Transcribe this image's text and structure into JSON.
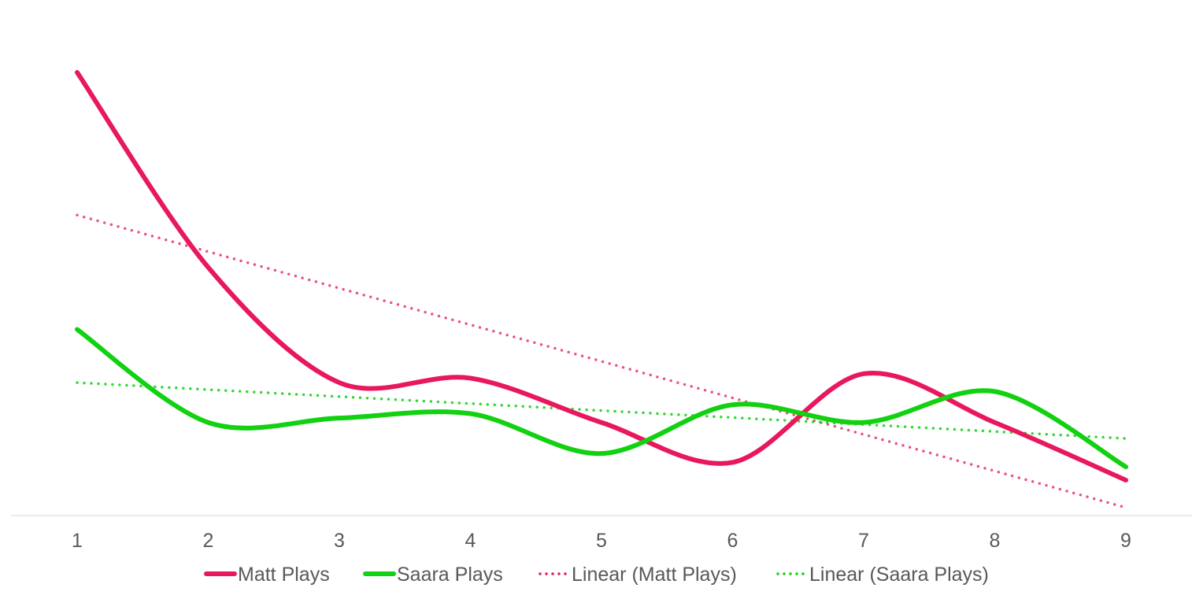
{
  "chart_data": {
    "type": "line",
    "title": "",
    "xlabel": "",
    "ylabel": "",
    "x": [
      1,
      2,
      3,
      4,
      5,
      6,
      7,
      8,
      9
    ],
    "ylim": [
      0,
      100
    ],
    "grid": false,
    "smooth": true,
    "legend_position": "bottom",
    "series": [
      {
        "name": "Matt Plays",
        "color": "#e8185c",
        "style": "solid",
        "values": [
          100,
          56,
          30,
          31,
          21,
          12,
          32,
          21,
          8
        ]
      },
      {
        "name": "Saara Plays",
        "color": "#11d111",
        "style": "solid",
        "values": [
          42,
          21,
          22,
          23,
          14,
          25,
          21,
          28,
          11
        ]
      },
      {
        "name": "Linear (Matt Plays)",
        "color": "#e8185c",
        "style": "dotted",
        "trend_of": "Matt Plays",
        "values": [
          67.8,
          59.55,
          51.31,
          43.06,
          34.81,
          26.56,
          18.31,
          10.06,
          1.81
        ]
      },
      {
        "name": "Linear (Saara Plays)",
        "color": "#11d111",
        "style": "dotted",
        "trend_of": "Saara Plays",
        "values": [
          30.0,
          28.42,
          26.85,
          25.27,
          23.69,
          22.12,
          20.54,
          18.96,
          17.39
        ]
      }
    ]
  }
}
